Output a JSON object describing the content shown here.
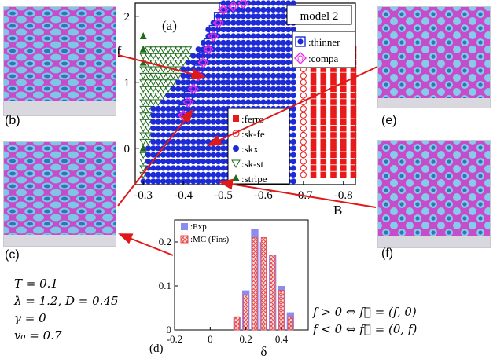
{
  "snapshots": [
    {
      "id": "b",
      "label": "(b)"
    },
    {
      "id": "c",
      "label": "(c)"
    },
    {
      "id": "e",
      "label": "(e)"
    },
    {
      "id": "f",
      "label": "(f)"
    }
  ],
  "colors": {
    "blue": "#1c2bd6",
    "red": "#e81919",
    "green": "#1e6b1e",
    "magenta": "#e62ee6",
    "arrow": "#e01818",
    "hist_exp": "#8c8cf0",
    "hist_mc": "#e84a4a"
  },
  "parameters": [
    "T = 0.1",
    "λ = 1.2, D = 0.45",
    "γ = 0",
    "v₀ = 0.7"
  ],
  "conditions": [
    "f > 0 ⇔ f⃗ = (f, 0)",
    "f < 0 ⇔ f⃗ = (0, f)"
  ],
  "chart_data": [
    {
      "panel": "(a)",
      "type": "scatter",
      "title": "model 2",
      "xlabel": "B",
      "ylabel": "f",
      "xlim": [
        -0.28,
        -0.83
      ],
      "ylim": [
        -0.55,
        2.2
      ],
      "xticks": [
        "-0.3",
        "-0.4",
        "-0.5",
        "-0.6",
        "-0.7",
        "-0.8"
      ],
      "yticks": [
        "0",
        "1",
        "2"
      ],
      "xstep": 0.0125,
      "ystep": 0.1,
      "legend_left": [
        {
          "label": ":ferro",
          "marker": "square",
          "color": "red"
        },
        {
          "label": ":sk-fe",
          "marker": "open-circle",
          "color": "red"
        },
        {
          "label": ":skx",
          "marker": "circle",
          "color": "blue"
        },
        {
          "label": ":sk-st",
          "marker": "open-triangle-down",
          "color": "green"
        },
        {
          "label": ":stripe",
          "marker": "triangle-up",
          "color": "green"
        }
      ],
      "legend_right": [
        {
          "label": ":thinner",
          "marker": "square-circle",
          "color": "blue"
        },
        {
          "label": ":compa",
          "marker": "diamond-circle",
          "color": "magenta"
        }
      ],
      "phase_regions": [
        {
          "phase": "stripe",
          "points": [
            [
              -0.3,
              1.7
            ],
            [
              -0.3,
              1.5
            ],
            [
              -0.3,
              1.3
            ],
            [
              -0.3,
              0.0
            ]
          ]
        },
        {
          "phase": "sk-st",
          "f_range": [
            -0.4,
            1.5
          ],
          "b_range": [
            -0.3,
            -0.415
          ]
        },
        {
          "phase": "skx",
          "boundary": [
            [
              -0.3,
              -0.5
            ],
            [
              -0.325,
              0.6
            ],
            [
              -0.36,
              0.85
            ],
            [
              -0.4,
              1.2
            ],
            [
              -0.44,
              1.55
            ],
            [
              -0.47,
              1.9
            ],
            [
              -0.5,
              2.2
            ]
          ],
          "b_max": -0.685
        },
        {
          "phase": "sk-fe",
          "b_range": [
            -0.7,
            -0.7
          ],
          "f_range": [
            -0.4,
            1.5
          ]
        },
        {
          "phase": "ferro",
          "b_range": [
            -0.725,
            -0.825
          ],
          "f_range": [
            -0.4,
            1.5
          ]
        }
      ],
      "thinner_points": [
        [
          -0.4,
          0.6
        ],
        [
          -0.4125,
          0.8
        ],
        [
          -0.425,
          1.0
        ],
        [
          -0.4375,
          1.2
        ],
        [
          -0.45,
          1.4
        ],
        [
          -0.4625,
          1.6
        ],
        [
          -0.475,
          1.8
        ],
        [
          -0.4875,
          2.0
        ],
        [
          -0.5,
          2.15
        ]
      ],
      "compa_points": [
        [
          -0.4,
          0.5
        ],
        [
          -0.4125,
          0.7
        ],
        [
          -0.425,
          0.9
        ],
        [
          -0.4375,
          1.1
        ],
        [
          -0.45,
          1.3
        ],
        [
          -0.4625,
          1.5
        ],
        [
          -0.475,
          1.7
        ],
        [
          -0.4875,
          1.9
        ],
        [
          -0.5,
          2.1
        ],
        [
          -0.525,
          2.15
        ],
        [
          -0.55,
          2.2
        ]
      ]
    },
    {
      "panel": "(d)",
      "type": "bar",
      "xlabel": "δ",
      "xlim": [
        -0.2,
        0.55
      ],
      "ylim": [
        0,
        0.25
      ],
      "xticks": [
        "-0.2",
        "0",
        "0.2",
        "0.4"
      ],
      "yticks": [
        "0",
        "0.1",
        "0.2"
      ],
      "bins": [
        0.15,
        0.2,
        0.25,
        0.3,
        0.35,
        0.4,
        0.45
      ],
      "bin_width": 0.05,
      "series": [
        {
          "name": ":Exp",
          "values": [
            0.03,
            0.09,
            0.23,
            0.2,
            0.17,
            0.1,
            0.04
          ]
        },
        {
          "name": ":MC (Fins)",
          "values": [
            0.03,
            0.08,
            0.21,
            0.21,
            0.17,
            0.09,
            0.03
          ]
        }
      ]
    }
  ]
}
